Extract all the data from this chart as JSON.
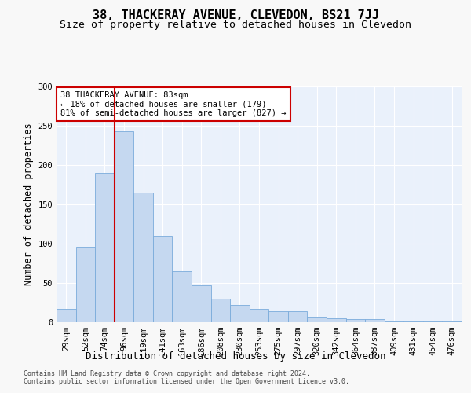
{
  "title": "38, THACKERAY AVENUE, CLEVEDON, BS21 7JJ",
  "subtitle": "Size of property relative to detached houses in Clevedon",
  "xlabel": "Distribution of detached houses by size in Clevedon",
  "ylabel": "Number of detached properties",
  "property_label": "38 THACKERAY AVENUE: 83sqm",
  "annotation_line1": "← 18% of detached houses are smaller (179)",
  "annotation_line2": "81% of semi-detached houses are larger (827) →",
  "footer1": "Contains HM Land Registry data © Crown copyright and database right 2024.",
  "footer2": "Contains public sector information licensed under the Open Government Licence v3.0.",
  "bin_labels": [
    "29sqm",
    "52sqm",
    "74sqm",
    "96sqm",
    "119sqm",
    "141sqm",
    "163sqm",
    "186sqm",
    "208sqm",
    "230sqm",
    "253sqm",
    "275sqm",
    "297sqm",
    "320sqm",
    "342sqm",
    "364sqm",
    "387sqm",
    "409sqm",
    "431sqm",
    "454sqm",
    "476sqm"
  ],
  "bar_heights": [
    17,
    96,
    190,
    243,
    165,
    110,
    65,
    47,
    30,
    22,
    17,
    14,
    14,
    7,
    5,
    4,
    4,
    1,
    1,
    1,
    1
  ],
  "bar_color": "#c5d8f0",
  "bar_edge_color": "#7aabdb",
  "line_color": "#cc0000",
  "ylim": [
    0,
    300
  ],
  "yticks": [
    0,
    50,
    100,
    150,
    200,
    250,
    300
  ],
  "bg_color": "#eaf1fb",
  "grid_color": "#ffffff",
  "annotation_box_color": "#ffffff",
  "annotation_box_edge": "#cc0000",
  "title_fontsize": 11,
  "subtitle_fontsize": 9.5,
  "axis_label_fontsize": 8.5,
  "tick_fontsize": 7.5,
  "annotation_fontsize": 7.5,
  "footer_fontsize": 6.0
}
